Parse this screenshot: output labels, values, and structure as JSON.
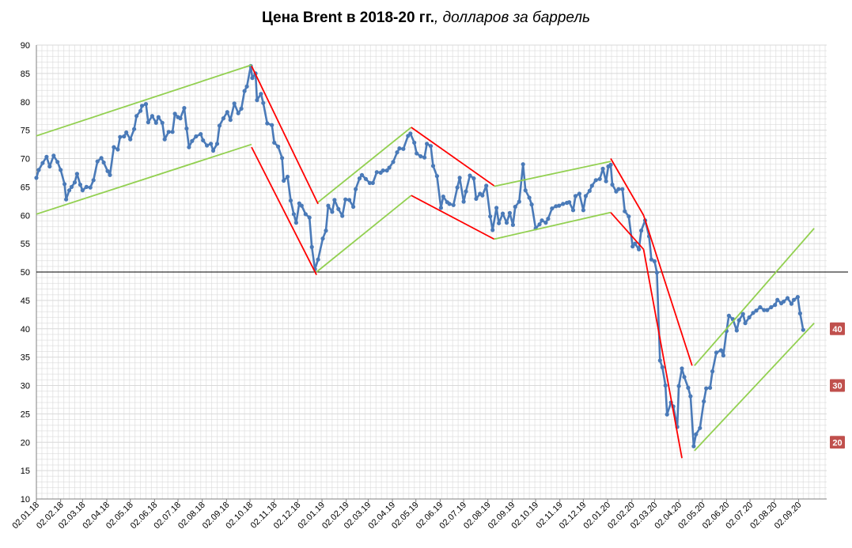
{
  "title": "Цена Brent в 2018-20 гг.",
  "subtitle": ", долларов за баррель",
  "colors": {
    "series": "#4a7ab8",
    "up_channel": "#92d050",
    "down_channel": "#ff0000",
    "badge": "#c0504d",
    "grid": "#d9d9d9",
    "reference": "#000000"
  },
  "chart_data": {
    "type": "line",
    "title": "Цена Brent в 2018-20 гг., долларов за баррель",
    "xlabel": "",
    "ylabel": "",
    "ylim": [
      10,
      90
    ],
    "yticks": [
      10,
      15,
      20,
      25,
      30,
      35,
      40,
      45,
      50,
      55,
      60,
      65,
      70,
      75,
      80,
      85,
      90
    ],
    "x_tick_labels": [
      "02.01.18",
      "02.02.18",
      "02.03.18",
      "02.04.18",
      "02.05.18",
      "02.06.18",
      "02.07.18",
      "02.08.18",
      "02.09.18",
      "02.10.18",
      "02.11.18",
      "02.12.18",
      "02.01.19",
      "02.02.19",
      "02.03.19",
      "02.04.19",
      "02.05.19",
      "02.06.19",
      "02.07.19",
      "02.08.19",
      "02.09.19",
      "02.10.19",
      "02.11.19",
      "02.12.19",
      "02.01.20",
      "02.02.20",
      "02.03.20",
      "02.04.20",
      "02.05.20",
      "02.06.20",
      "02.07.20",
      "02.08.20",
      "02.09.20"
    ],
    "x_start": "02.01.18",
    "grid": true,
    "legend": "none",
    "reference_line_y": 50,
    "series": [
      {
        "values": [
          [
            "02.01.18",
            66.6
          ],
          [
            "05.01.18",
            68
          ],
          [
            "10.01.18",
            69.2
          ],
          [
            "15.01.18",
            70.3
          ],
          [
            "19.01.18",
            68.6
          ],
          [
            "24.01.18",
            70.5
          ],
          [
            "29.01.18",
            69.4
          ],
          [
            "02.02.18",
            68
          ],
          [
            "07.02.18",
            65.5
          ],
          [
            "09.02.18",
            62.8
          ],
          [
            "13.02.18",
            64.4
          ],
          [
            "16.02.18",
            65
          ],
          [
            "20.02.18",
            65.8
          ],
          [
            "23.02.18",
            67.3
          ],
          [
            "27.02.18",
            65.4
          ],
          [
            "02.03.18",
            64.4
          ],
          [
            "07.03.18",
            65
          ],
          [
            "12.03.18",
            64.9
          ],
          [
            "16.03.18",
            66.2
          ],
          [
            "21.03.18",
            69.5
          ],
          [
            "26.03.18",
            70.1
          ],
          [
            "29.03.18",
            69.3
          ],
          [
            "03.04.18",
            67.8
          ],
          [
            "06.04.18",
            67.1
          ],
          [
            "11.04.18",
            72
          ],
          [
            "16.04.18",
            71.6
          ],
          [
            "19.04.18",
            73.8
          ],
          [
            "24.04.18",
            73.9
          ],
          [
            "27.04.18",
            74.6
          ],
          [
            "02.05.18",
            73.4
          ],
          [
            "07.05.18",
            75.2
          ],
          [
            "10.05.18",
            77.5
          ],
          [
            "15.05.18",
            78.4
          ],
          [
            "17.05.18",
            79.3
          ],
          [
            "22.05.18",
            79.6
          ],
          [
            "25.05.18",
            76.4
          ],
          [
            "30.05.18",
            77.5
          ],
          [
            "04.06.18",
            76.3
          ],
          [
            "07.06.18",
            77.3
          ],
          [
            "12.06.18",
            76.3
          ],
          [
            "15.06.18",
            73.4
          ],
          [
            "20.06.18",
            74.7
          ],
          [
            "25.06.18",
            74.7
          ],
          [
            "28.06.18",
            77.9
          ],
          [
            "02.07.18",
            77.3
          ],
          [
            "05.07.18",
            77.1
          ],
          [
            "10.07.18",
            78.9
          ],
          [
            "13.07.18",
            75.3
          ],
          [
            "16.07.18",
            72
          ],
          [
            "20.07.18",
            73.1
          ],
          [
            "25.07.18",
            73.9
          ],
          [
            "31.07.18",
            74.3
          ],
          [
            "03.08.18",
            73.2
          ],
          [
            "08.08.18",
            72.3
          ],
          [
            "13.08.18",
            72.6
          ],
          [
            "16.08.18",
            71.4
          ],
          [
            "21.08.18",
            72.6
          ],
          [
            "24.08.18",
            75.8
          ],
          [
            "29.08.18",
            77.1
          ],
          [
            "03.09.18",
            78.2
          ],
          [
            "07.09.18",
            76.8
          ],
          [
            "12.09.18",
            79.7
          ],
          [
            "17.09.18",
            78
          ],
          [
            "21.09.18",
            78.8
          ],
          [
            "25.09.18",
            81.9
          ],
          [
            "28.09.18",
            82.7
          ],
          [
            "03.10.18",
            86.3
          ],
          [
            "05.10.18",
            84.2
          ],
          [
            "09.10.18",
            85
          ],
          [
            "11.10.18",
            80.3
          ],
          [
            "16.10.18",
            81.4
          ],
          [
            "19.10.18",
            79.8
          ],
          [
            "24.10.18",
            76.2
          ],
          [
            "30.10.18",
            75.9
          ],
          [
            "02.11.18",
            72.8
          ],
          [
            "07.11.18",
            72.1
          ],
          [
            "12.11.18",
            70.1
          ],
          [
            "14.11.18",
            66.1
          ],
          [
            "19.11.18",
            66.8
          ],
          [
            "23.11.18",
            62.6
          ],
          [
            "27.11.18",
            60.2
          ],
          [
            "30.11.18",
            58.7
          ],
          [
            "04.12.18",
            62.1
          ],
          [
            "07.12.18",
            61.7
          ],
          [
            "12.12.18",
            60.2
          ],
          [
            "17.12.18",
            59.6
          ],
          [
            "20.12.18",
            54.4
          ],
          [
            "24.12.18",
            50.5
          ],
          [
            "28.12.18",
            52.2
          ],
          [
            "03.01.19",
            55.9
          ],
          [
            "07.01.19",
            57.3
          ],
          [
            "10.01.19",
            61.7
          ],
          [
            "15.01.19",
            60.6
          ],
          [
            "18.01.19",
            62.7
          ],
          [
            "23.01.19",
            61.1
          ],
          [
            "28.01.19",
            59.9
          ],
          [
            "01.02.19",
            62.8
          ],
          [
            "06.02.19",
            62.7
          ],
          [
            "11.02.19",
            61.5
          ],
          [
            "14.02.19",
            64.6
          ],
          [
            "19.02.19",
            66.5
          ],
          [
            "22.02.19",
            67.1
          ],
          [
            "27.02.19",
            66.4
          ],
          [
            "04.03.19",
            65.7
          ],
          [
            "08.03.19",
            65.7
          ],
          [
            "13.03.19",
            67.6
          ],
          [
            "18.03.19",
            67.5
          ],
          [
            "21.03.19",
            67.9
          ],
          [
            "26.03.19",
            67.9
          ],
          [
            "29.03.19",
            68.4
          ],
          [
            "03.04.19",
            69.4
          ],
          [
            "08.04.19",
            71.1
          ],
          [
            "11.04.19",
            71.8
          ],
          [
            "16.04.19",
            71.7
          ],
          [
            "22.04.19",
            74
          ],
          [
            "25.04.19",
            74.4
          ],
          [
            "30.04.19",
            72.8
          ],
          [
            "03.05.19",
            70.9
          ],
          [
            "08.05.19",
            70.4
          ],
          [
            "13.05.19",
            70.2
          ],
          [
            "16.05.19",
            72.6
          ],
          [
            "21.05.19",
            72.2
          ],
          [
            "24.05.19",
            68.7
          ],
          [
            "29.05.19",
            66.9
          ],
          [
            "03.06.19",
            61.3
          ],
          [
            "06.06.19",
            63.3
          ],
          [
            "11.06.19",
            62.3
          ],
          [
            "14.06.19",
            62
          ],
          [
            "19.06.19",
            61.8
          ],
          [
            "24.06.19",
            64.9
          ],
          [
            "27.06.19",
            66.6
          ],
          [
            "02.07.19",
            62.4
          ],
          [
            "05.07.19",
            64.2
          ],
          [
            "10.07.19",
            67
          ],
          [
            "15.07.19",
            66.5
          ],
          [
            "18.07.19",
            62.9
          ],
          [
            "23.07.19",
            63.8
          ],
          [
            "26.07.19",
            63.5
          ],
          [
            "31.07.19",
            65.2
          ],
          [
            "05.08.19",
            59.8
          ],
          [
            "08.08.19",
            57.4
          ],
          [
            "13.08.19",
            61.3
          ],
          [
            "16.08.19",
            58.6
          ],
          [
            "21.08.19",
            60.3
          ],
          [
            "26.08.19",
            58.7
          ],
          [
            "30.08.19",
            60.4
          ],
          [
            "03.09.19",
            58.3
          ],
          [
            "06.09.19",
            61.5
          ],
          [
            "11.09.19",
            62.4
          ],
          [
            "16.09.19",
            69
          ],
          [
            "19.09.19",
            64.4
          ],
          [
            "24.09.19",
            63.1
          ],
          [
            "27.09.19",
            61.9
          ],
          [
            "02.10.19",
            57.7
          ],
          [
            "07.10.19",
            58.4
          ],
          [
            "10.10.19",
            59.1
          ],
          [
            "15.10.19",
            58.7
          ],
          [
            "18.10.19",
            59.4
          ],
          [
            "23.10.19",
            61.2
          ],
          [
            "28.10.19",
            61.6
          ],
          [
            "01.11.19",
            61.7
          ],
          [
            "06.11.19",
            62
          ],
          [
            "11.11.19",
            62.2
          ],
          [
            "14.11.19",
            62.3
          ],
          [
            "19.11.19",
            60.9
          ],
          [
            "22.11.19",
            63.4
          ],
          [
            "27.11.19",
            63.8
          ],
          [
            "02.12.19",
            60.9
          ],
          [
            "05.12.19",
            63.4
          ],
          [
            "10.12.19",
            64.3
          ],
          [
            "13.12.19",
            65.2
          ],
          [
            "18.12.19",
            66.2
          ],
          [
            "23.12.19",
            66.4
          ],
          [
            "27.12.19",
            68.2
          ],
          [
            "31.12.19",
            66
          ],
          [
            "03.01.20",
            68.6
          ],
          [
            "06.01.20",
            68.9
          ],
          [
            "08.01.20",
            65.4
          ],
          [
            "13.01.20",
            64.2
          ],
          [
            "16.01.20",
            64.6
          ],
          [
            "21.01.20",
            64.6
          ],
          [
            "24.01.20",
            60.7
          ],
          [
            "29.01.20",
            59.8
          ],
          [
            "03.02.20",
            54.5
          ],
          [
            "06.02.20",
            55
          ],
          [
            "11.02.20",
            54
          ],
          [
            "14.02.20",
            57.3
          ],
          [
            "19.02.20",
            59.1
          ],
          [
            "24.02.20",
            56.3
          ],
          [
            "27.02.20",
            52.2
          ],
          [
            "02.03.20",
            51.9
          ],
          [
            "05.03.20",
            49.9
          ],
          [
            "09.03.20",
            34.4
          ],
          [
            "12.03.20",
            33.2
          ],
          [
            "16.03.20",
            30
          ],
          [
            "18.03.20",
            24.9
          ],
          [
            "23.03.20",
            27
          ],
          [
            "26.03.20",
            26.3
          ],
          [
            "31.03.20",
            22.7
          ],
          [
            "02.04.20",
            29.9
          ],
          [
            "06.04.20",
            33
          ],
          [
            "09.04.20",
            31.5
          ],
          [
            "14.04.20",
            29.6
          ],
          [
            "17.04.20",
            28.1
          ],
          [
            "21.04.20",
            19.3
          ],
          [
            "24.04.20",
            21.4
          ],
          [
            "29.04.20",
            22.5
          ],
          [
            "04.05.20",
            27.2
          ],
          [
            "07.05.20",
            29.5
          ],
          [
            "12.05.20",
            29.6
          ],
          [
            "15.05.20",
            32.5
          ],
          [
            "20.05.20",
            35.8
          ],
          [
            "26.05.20",
            36.2
          ],
          [
            "29.05.20",
            35.3
          ],
          [
            "02.06.20",
            39.6
          ],
          [
            "05.06.20",
            42.3
          ],
          [
            "10.06.20",
            41.7
          ],
          [
            "15.06.20",
            39.7
          ],
          [
            "18.06.20",
            41.5
          ],
          [
            "23.06.20",
            42.6
          ],
          [
            "26.06.20",
            41
          ],
          [
            "01.07.20",
            42
          ],
          [
            "06.07.20",
            42.8
          ],
          [
            "10.07.20",
            43.2
          ],
          [
            "15.07.20",
            43.8
          ],
          [
            "20.07.20",
            43.3
          ],
          [
            "24.07.20",
            43.3
          ],
          [
            "29.07.20",
            43.8
          ],
          [
            "03.08.20",
            44.2
          ],
          [
            "06.08.20",
            45.1
          ],
          [
            "11.08.20",
            44.5
          ],
          [
            "14.08.20",
            44.8
          ],
          [
            "19.08.20",
            45.4
          ],
          [
            "24.08.20",
            44.4
          ],
          [
            "27.08.20",
            45.1
          ],
          [
            "01.09.20",
            45.6
          ],
          [
            "04.09.20",
            42.7
          ],
          [
            "08.09.20",
            39.8
          ]
        ]
      }
    ],
    "trend_lines": [
      {
        "kind": "up",
        "from": [
          "02.01.18",
          74
        ],
        "to": [
          "04.10.18",
          86.5
        ]
      },
      {
        "kind": "up",
        "from": [
          "02.01.18",
          60.2
        ],
        "to": [
          "04.10.18",
          72.5
        ]
      },
      {
        "kind": "down",
        "from": [
          "04.10.18",
          86.3
        ],
        "to": [
          "28.12.18",
          62
        ]
      },
      {
        "kind": "down",
        "from": [
          "04.10.18",
          72
        ],
        "to": [
          "26.12.18",
          49.5
        ]
      },
      {
        "kind": "up",
        "from": [
          "28.12.18",
          62.3
        ],
        "to": [
          "26.04.19",
          75.5
        ]
      },
      {
        "kind": "up",
        "from": [
          "26.12.18",
          50
        ],
        "to": [
          "26.04.19",
          63.5
        ]
      },
      {
        "kind": "down",
        "from": [
          "26.04.19",
          75.5
        ],
        "to": [
          "10.08.19",
          65.2
        ]
      },
      {
        "kind": "down",
        "from": [
          "26.04.19",
          63.5
        ],
        "to": [
          "10.08.19",
          55.8
        ]
      },
      {
        "kind": "up",
        "from": [
          "10.08.19",
          65.1
        ],
        "to": [
          "06.01.20",
          69.5
        ]
      },
      {
        "kind": "up",
        "from": [
          "10.08.19",
          55.8
        ],
        "to": [
          "06.01.20",
          60.5
        ]
      },
      {
        "kind": "down",
        "from": [
          "06.01.20",
          70
        ],
        "to": [
          "17.02.20",
          60
        ]
      },
      {
        "kind": "down",
        "from": [
          "06.01.20",
          60.5
        ],
        "to": [
          "17.02.20",
          54
        ]
      },
      {
        "kind": "down",
        "from": [
          "17.02.20",
          60
        ],
        "to": [
          "19.04.20",
          33.5
        ]
      },
      {
        "kind": "down",
        "from": [
          "17.02.20",
          54
        ],
        "to": [
          "06.04.20",
          17.2
        ]
      },
      {
        "kind": "up",
        "from": [
          "22.04.20",
          33.5
        ],
        "to": [
          "22.09.20",
          57.7
        ]
      },
      {
        "kind": "up",
        "from": [
          "22.04.20",
          18.5
        ],
        "to": [
          "22.09.20",
          41
        ]
      }
    ],
    "badges": [
      40,
      30,
      20
    ]
  }
}
